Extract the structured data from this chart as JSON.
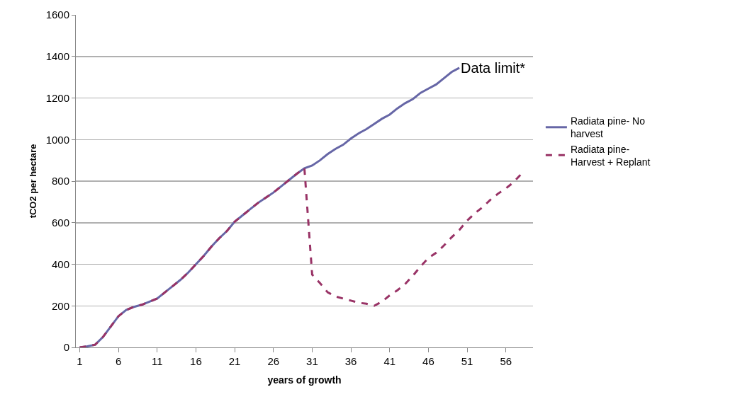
{
  "chart_data": {
    "type": "line",
    "xlabel": "years of growth",
    "ylabel": "tCO2 per hectare",
    "x": [
      1,
      2,
      3,
      4,
      5,
      6,
      7,
      8,
      9,
      10,
      11,
      12,
      13,
      14,
      15,
      16,
      17,
      18,
      19,
      20,
      21,
      22,
      23,
      24,
      25,
      26,
      27,
      28,
      29,
      30,
      31,
      32,
      33,
      34,
      35,
      36,
      37,
      38,
      39,
      40,
      41,
      42,
      43,
      44,
      45,
      46,
      47,
      48,
      49,
      50,
      51,
      52,
      53,
      54,
      55,
      56,
      57,
      58
    ],
    "series": [
      {
        "name": "Radiata pine- No harvest",
        "color": "#6666a6",
        "line_style": "solid",
        "values": [
          0,
          5,
          13,
          50,
          100,
          150,
          180,
          195,
          205,
          220,
          235,
          265,
          295,
          325,
          360,
          400,
          440,
          485,
          525,
          560,
          605,
          635,
          665,
          695,
          720,
          745,
          775,
          805,
          835,
          862,
          875,
          900,
          930,
          955,
          975,
          1005,
          1030,
          1050,
          1075,
          1100,
          1120,
          1150,
          1175,
          1195,
          1225,
          1245,
          1265,
          1295,
          1325,
          1345,
          null,
          null,
          null,
          null,
          null,
          null,
          null,
          null
        ]
      },
      {
        "name": "Radiata pine- Harvest + Replant",
        "color": "#993366",
        "line_style": "dashed",
        "values": [
          0,
          5,
          13,
          50,
          100,
          150,
          180,
          195,
          205,
          220,
          235,
          265,
          295,
          325,
          360,
          400,
          440,
          485,
          525,
          560,
          605,
          635,
          665,
          695,
          720,
          745,
          775,
          805,
          835,
          862,
          350,
          310,
          265,
          245,
          235,
          225,
          215,
          210,
          200,
          220,
          250,
          275,
          305,
          345,
          390,
          430,
          455,
          490,
          530,
          565,
          610,
          645,
          675,
          710,
          740,
          765,
          795,
          835
        ]
      }
    ],
    "xlim": [
      0.5,
      59.5
    ],
    "xticks": [
      1,
      6,
      11,
      16,
      21,
      26,
      31,
      36,
      41,
      46,
      51,
      56
    ],
    "ylim": [
      0,
      1600
    ],
    "yticks": [
      0,
      200,
      400,
      600,
      800,
      1000,
      1200,
      1400,
      1600
    ],
    "grid": "y",
    "legend": "right",
    "marker": "none",
    "annotations": [
      {
        "text": "Data limit*",
        "x": 50,
        "y": 1345
      }
    ]
  }
}
